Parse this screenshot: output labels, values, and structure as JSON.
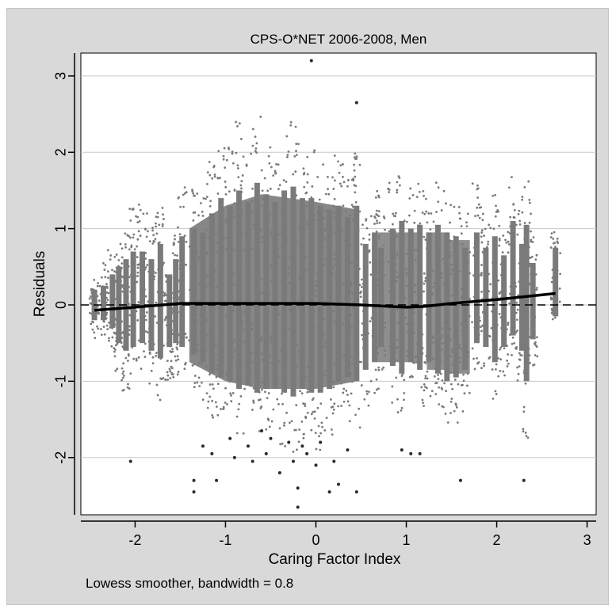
{
  "chart_data": {
    "type": "scatter",
    "title": "CPS-O*NET 2006-2008, Men",
    "xlabel": "Caring Factor Index",
    "ylabel": "Residuals",
    "xlim": [
      -2.6,
      3.1
    ],
    "ylim": [
      -2.75,
      3.3
    ],
    "x_ticks": [
      -2,
      -1,
      0,
      1,
      2,
      3
    ],
    "y_ticks": [
      -2,
      -1,
      0,
      1,
      2,
      3
    ],
    "grid": "horizontal",
    "note": "Lowess smoother,   bandwidth = 0.8",
    "reference_line": {
      "y": 0,
      "style": "dashed"
    },
    "series": [
      {
        "type": "scatter",
        "description_columns": [
          "x",
          "ymin",
          "ymax",
          "core_min",
          "core_max"
        ],
        "columns": [
          [
            -2.45,
            -0.45,
            0.35,
            -0.2,
            0.2
          ],
          [
            -2.35,
            -0.4,
            0.55,
            -0.2,
            0.25
          ],
          [
            -2.25,
            -0.6,
            0.75,
            -0.3,
            0.4
          ],
          [
            -2.18,
            -0.95,
            0.85,
            -0.5,
            0.5
          ],
          [
            -2.1,
            -1.15,
            0.95,
            -0.6,
            0.6
          ],
          [
            -2.02,
            -1.05,
            1.35,
            -0.55,
            0.7
          ],
          [
            -1.92,
            -0.85,
            1.45,
            -0.5,
            0.7
          ],
          [
            -1.82,
            -1.05,
            1.05,
            -0.6,
            0.6
          ],
          [
            -1.72,
            -1.25,
            1.35,
            -0.7,
            0.8
          ],
          [
            -1.62,
            -1.0,
            0.55,
            -0.55,
            0.4
          ],
          [
            -1.55,
            -0.95,
            0.95,
            -0.5,
            0.6
          ],
          [
            -1.48,
            -0.95,
            1.55,
            -0.55,
            0.9
          ],
          [
            -1.35,
            -1.1,
            1.7,
            -0.65,
            1.0
          ],
          [
            -1.25,
            -1.25,
            1.5,
            -0.75,
            0.95
          ],
          [
            -1.15,
            -1.55,
            2.0,
            -0.9,
            1.2
          ],
          [
            -1.05,
            -1.5,
            2.3,
            -0.95,
            1.4
          ],
          [
            -0.95,
            -1.6,
            2.1,
            -1.0,
            1.3
          ],
          [
            -0.85,
            -1.75,
            2.4,
            -1.1,
            1.5
          ],
          [
            -0.75,
            -1.7,
            2.0,
            -1.05,
            1.35
          ],
          [
            -0.65,
            -1.85,
            2.55,
            -1.15,
            1.6
          ],
          [
            -0.55,
            -1.75,
            2.2,
            -1.1,
            1.45
          ],
          [
            -0.45,
            -1.8,
            1.95,
            -1.1,
            1.35
          ],
          [
            -0.35,
            -1.9,
            2.3,
            -1.15,
            1.5
          ],
          [
            -0.25,
            -2.0,
            2.45,
            -1.2,
            1.55
          ],
          [
            -0.15,
            -1.8,
            2.15,
            -1.1,
            1.4
          ],
          [
            -0.05,
            -1.85,
            2.1,
            -1.15,
            1.4
          ],
          [
            0.05,
            -1.9,
            1.9,
            -1.15,
            1.3
          ],
          [
            0.15,
            -1.75,
            1.85,
            -1.1,
            1.25
          ],
          [
            0.25,
            -1.6,
            2.0,
            -1.0,
            1.3
          ],
          [
            0.35,
            -1.55,
            1.75,
            -0.95,
            1.15
          ],
          [
            0.45,
            -1.7,
            2.0,
            -1.0,
            1.3
          ],
          [
            0.55,
            -1.4,
            1.2,
            -0.85,
            0.8
          ],
          [
            0.65,
            -1.2,
            1.55,
            -0.75,
            0.95
          ],
          [
            0.72,
            -0.9,
            1.25,
            -0.55,
            0.75
          ],
          [
            0.85,
            -1.3,
            1.6,
            -0.8,
            1.0
          ],
          [
            0.95,
            -1.45,
            1.75,
            -0.9,
            1.1
          ],
          [
            1.05,
            -1.2,
            1.6,
            -0.75,
            1.0
          ],
          [
            1.15,
            -1.4,
            1.65,
            -0.85,
            1.05
          ],
          [
            1.25,
            -1.2,
            1.45,
            -0.75,
            0.95
          ],
          [
            1.35,
            -1.5,
            1.7,
            -0.9,
            1.05
          ],
          [
            1.45,
            -1.65,
            1.5,
            -1.0,
            0.95
          ],
          [
            1.55,
            -1.55,
            1.4,
            -0.95,
            0.9
          ],
          [
            1.65,
            -1.4,
            1.2,
            -0.85,
            0.75
          ],
          [
            1.78,
            -0.9,
            1.6,
            -0.5,
            0.95
          ],
          [
            1.88,
            -0.95,
            1.2,
            -0.55,
            0.75
          ],
          [
            1.98,
            -1.3,
            1.5,
            -0.75,
            0.9
          ],
          [
            2.08,
            -0.95,
            1.0,
            -0.55,
            0.65
          ],
          [
            2.18,
            -0.7,
            1.8,
            -0.4,
            1.1
          ],
          [
            2.28,
            -1.05,
            1.25,
            -0.6,
            0.8
          ],
          [
            2.33,
            -1.75,
            1.65,
            -1.0,
            1.05
          ],
          [
            2.4,
            -0.8,
            0.9,
            -0.45,
            0.55
          ],
          [
            2.65,
            -0.2,
            1.0,
            -0.15,
            0.75
          ]
        ]
      },
      {
        "type": "scatter",
        "description": "low outlier points",
        "points": [
          [
            -2.05,
            -2.05
          ],
          [
            -1.35,
            -2.3
          ],
          [
            -1.35,
            -2.45
          ],
          [
            -1.25,
            -1.85
          ],
          [
            -1.15,
            -1.95
          ],
          [
            -1.1,
            -2.3
          ],
          [
            -0.95,
            -1.75
          ],
          [
            -0.9,
            -2.0
          ],
          [
            -0.75,
            -1.85
          ],
          [
            -0.7,
            -2.05
          ],
          [
            -0.6,
            -1.65
          ],
          [
            -0.55,
            -1.95
          ],
          [
            -0.5,
            -1.75
          ],
          [
            -0.4,
            -2.2
          ],
          [
            -0.3,
            -1.8
          ],
          [
            -0.25,
            -2.05
          ],
          [
            -0.2,
            -2.4
          ],
          [
            -0.15,
            -1.85
          ],
          [
            -0.1,
            -1.95
          ],
          [
            0.0,
            -2.1
          ],
          [
            0.05,
            -1.8
          ],
          [
            0.15,
            -2.45
          ],
          [
            0.2,
            -2.05
          ],
          [
            0.25,
            -2.35
          ],
          [
            0.35,
            -1.9
          ],
          [
            0.45,
            -2.45
          ],
          [
            0.95,
            -1.9
          ],
          [
            1.05,
            -1.95
          ],
          [
            1.15,
            -1.95
          ],
          [
            1.6,
            -2.3
          ],
          [
            2.3,
            -2.3
          ],
          [
            -0.2,
            -2.65
          ],
          [
            -0.05,
            3.2
          ],
          [
            0.45,
            2.65
          ]
        ]
      },
      {
        "name": "",
        "type": "line",
        "x": [
          -2.45,
          -2.0,
          -1.5,
          -1.0,
          -0.5,
          0.0,
          0.5,
          1.0,
          1.2,
          1.5,
          2.0,
          2.65
        ],
        "y": [
          -0.07,
          -0.03,
          0.02,
          0.02,
          0.02,
          0.02,
          0.0,
          -0.03,
          -0.02,
          0.02,
          0.07,
          0.15
        ]
      }
    ],
    "colors": {
      "panel_background": "#d9d9d9",
      "plot_background": "#ffffff",
      "points": "#7a7a7a",
      "outliers": "#2a2a2a",
      "lowess_line": "#000000",
      "grid": "#c8c8c8"
    }
  }
}
